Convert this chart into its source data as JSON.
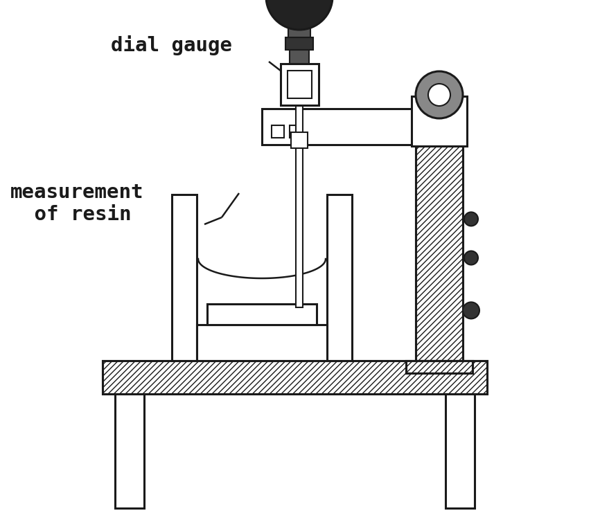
{
  "background_color": "#ffffff",
  "line_color": "#1a1a1a",
  "text_color": "#1a1a1a",
  "label_dial_gauge": "dial gauge",
  "label_measurement": "measurement\n of resin",
  "label_fontsize": 21,
  "label_fontfamily": "monospace",
  "fig_width": 8.66,
  "fig_height": 7.54,
  "dpi": 100
}
